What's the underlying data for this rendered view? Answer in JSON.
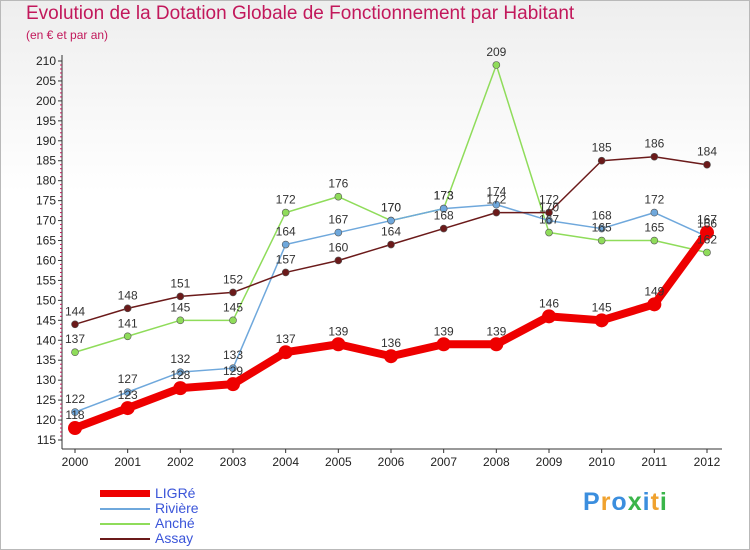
{
  "title": "Evolution de la Dotation Globale de Fonctionnement par Habitant",
  "subtitle": "(en € et par an)",
  "brand": {
    "text": "Proxiti",
    "letters": [
      {
        "ch": "P",
        "color": "#3b8ede"
      },
      {
        "ch": "r",
        "color": "#f0a22e"
      },
      {
        "ch": "o",
        "color": "#3b8ede"
      },
      {
        "ch": "x",
        "color": "#3ab54a"
      },
      {
        "ch": "i",
        "color": "#3b8ede"
      },
      {
        "ch": "t",
        "color": "#f0a22e"
      },
      {
        "ch": "i",
        "color": "#3ab54a"
      }
    ]
  },
  "chart_data": {
    "type": "line",
    "title": "Evolution de la Dotation Globale de Fonctionnement par Habitant",
    "subtitle": "(en € et par an)",
    "xlabel": "",
    "ylabel": "",
    "x": [
      "2000",
      "2001",
      "2002",
      "2003",
      "2004",
      "2005",
      "2006",
      "2007",
      "2008",
      "2009",
      "2010",
      "2011",
      "2012"
    ],
    "ylim": [
      115,
      210
    ],
    "yticks": [
      115,
      120,
      125,
      130,
      135,
      140,
      145,
      150,
      155,
      160,
      165,
      170,
      175,
      180,
      185,
      190,
      195,
      200,
      205,
      210
    ],
    "grid": false,
    "legend": "bottom-left",
    "series": [
      {
        "name": "LIGRé",
        "color": "#ee0000",
        "values": [
          118,
          123,
          128,
          129,
          137,
          139,
          136,
          139,
          139,
          146,
          145,
          149,
          167
        ]
      },
      {
        "name": "Rivière",
        "color": "#6fa8dc",
        "values": [
          122,
          127,
          132,
          133,
          164,
          167,
          170,
          173,
          174,
          170,
          168,
          172,
          166
        ]
      },
      {
        "name": "Anché",
        "color": "#8fdc5a",
        "values": [
          137,
          141,
          145,
          145,
          172,
          176,
          170,
          173,
          209,
          167,
          165,
          165,
          162
        ]
      },
      {
        "name": "Assay",
        "color": "#6b1a1a",
        "values": [
          144,
          148,
          151,
          152,
          157,
          160,
          164,
          168,
          172,
          172,
          185,
          186,
          184
        ]
      }
    ]
  }
}
